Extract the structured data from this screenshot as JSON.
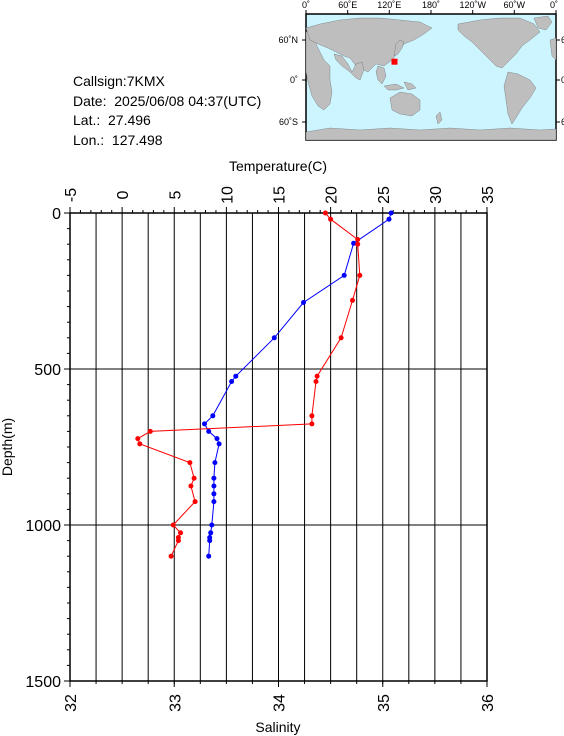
{
  "info": {
    "callsign": "Callsign:7KMX",
    "date": "Date:  2025/06/08 04:37(UTC)",
    "lat": "Lat.:  27.496",
    "lon": "Lon.:  127.498"
  },
  "map": {
    "lon_labels": [
      "0˚",
      "60˚E",
      "120˚E",
      "180˚",
      "120˚W",
      "60˚W",
      "0˚"
    ],
    "lat_labels": [
      "60˚N",
      "0˚",
      "60˚S"
    ],
    "marker": {
      "lon": 127.498,
      "lat": 27.496,
      "color": "#ff0000"
    },
    "ocean_color": "#ccf5ff",
    "land_color": "#bebebe"
  },
  "chart_data": {
    "type": "line",
    "temperature_axis": {
      "label": "Temperature(C)",
      "lim": [
        -5,
        35
      ],
      "ticks": [
        "-5",
        "0",
        "5",
        "10",
        "15",
        "20",
        "25",
        "30",
        "35"
      ]
    },
    "salinity_axis": {
      "label": "Salinity",
      "lim": [
        32,
        36
      ],
      "ticks": [
        "32",
        "33",
        "34",
        "35",
        "36"
      ]
    },
    "depth_axis": {
      "label": "Depth(m)",
      "lim": [
        0,
        1500
      ],
      "ticks": [
        "0",
        "500",
        "1000",
        "1500"
      ],
      "inverted": true
    },
    "grid": true,
    "series": [
      {
        "quantity": "temperature",
        "color": "#0000ff",
        "points": [
          {
            "x": 25.8,
            "depth": 0
          },
          {
            "x": 25.6,
            "depth": 20
          },
          {
            "x": 22.2,
            "depth": 97
          },
          {
            "x": 21.3,
            "depth": 200
          },
          {
            "x": 17.4,
            "depth": 287
          },
          {
            "x": 14.6,
            "depth": 400
          },
          {
            "x": 10.9,
            "depth": 523
          },
          {
            "x": 10.5,
            "depth": 540
          },
          {
            "x": 8.7,
            "depth": 650
          },
          {
            "x": 7.9,
            "depth": 676
          },
          {
            "x": 8.3,
            "depth": 700
          },
          {
            "x": 9.1,
            "depth": 723
          },
          {
            "x": 9.3,
            "depth": 740
          },
          {
            "x": 8.9,
            "depth": 800
          },
          {
            "x": 8.8,
            "depth": 850
          },
          {
            "x": 8.8,
            "depth": 875
          },
          {
            "x": 8.8,
            "depth": 900
          },
          {
            "x": 8.8,
            "depth": 925
          },
          {
            "x": 8.6,
            "depth": 1000
          },
          {
            "x": 8.5,
            "depth": 1025
          },
          {
            "x": 8.4,
            "depth": 1040
          },
          {
            "x": 8.4,
            "depth": 1050
          },
          {
            "x": 8.3,
            "depth": 1100
          }
        ]
      },
      {
        "quantity": "salinity",
        "color": "#ff0000",
        "points": [
          {
            "x": 34.45,
            "depth": 0
          },
          {
            "x": 34.5,
            "depth": 20
          },
          {
            "x": 34.76,
            "depth": 85
          },
          {
            "x": 34.76,
            "depth": 100
          },
          {
            "x": 34.78,
            "depth": 200
          },
          {
            "x": 34.71,
            "depth": 280
          },
          {
            "x": 34.6,
            "depth": 400
          },
          {
            "x": 34.37,
            "depth": 523
          },
          {
            "x": 34.36,
            "depth": 540
          },
          {
            "x": 34.32,
            "depth": 650
          },
          {
            "x": 34.32,
            "depth": 676
          },
          {
            "x": 32.77,
            "depth": 700
          },
          {
            "x": 32.65,
            "depth": 723
          },
          {
            "x": 32.67,
            "depth": 740
          },
          {
            "x": 33.15,
            "depth": 800
          },
          {
            "x": 33.19,
            "depth": 850
          },
          {
            "x": 33.16,
            "depth": 875
          },
          {
            "x": 33.2,
            "depth": 925
          },
          {
            "x": 32.99,
            "depth": 1000
          },
          {
            "x": 33.06,
            "depth": 1025
          },
          {
            "x": 33.04,
            "depth": 1040
          },
          {
            "x": 33.04,
            "depth": 1050
          },
          {
            "x": 32.97,
            "depth": 1100
          }
        ]
      }
    ]
  }
}
